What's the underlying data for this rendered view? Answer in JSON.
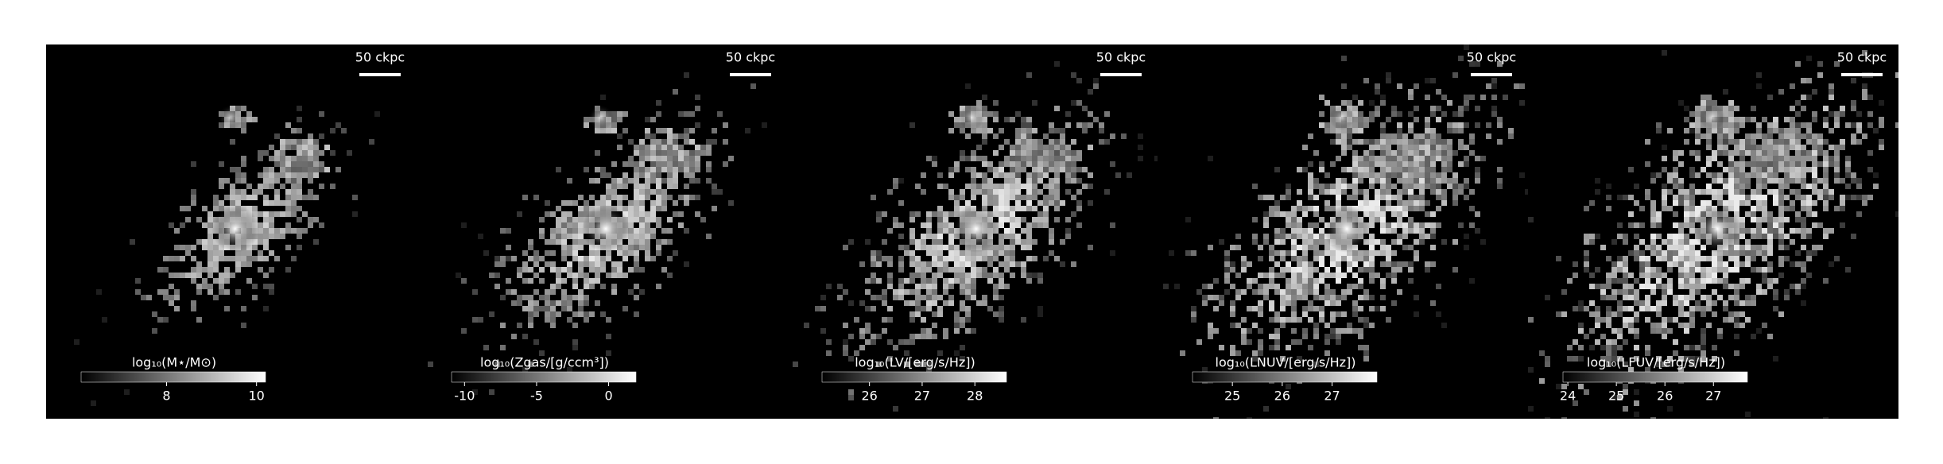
{
  "panels": [
    {
      "scale_label": "50 ckpc",
      "colorbar": {
        "label": "log₁₀(M⋆/M⊙)",
        "clim": [
          6.1,
          10.2
        ],
        "ticks": [
          8,
          10
        ]
      }
    },
    {
      "scale_label": "50 ckpc",
      "colorbar": {
        "label": "log₁₀(Zgas/[g/ccm³])",
        "clim": [
          -10.9,
          1.9
        ],
        "ticks": [
          -10,
          -5,
          0
        ]
      }
    },
    {
      "scale_label": "50 ckpc",
      "colorbar": {
        "label": "log₁₀(LV/[erg/s/Hz])",
        "clim": [
          25.1,
          28.6
        ],
        "ticks": [
          26,
          27,
          28
        ]
      }
    },
    {
      "scale_label": "50 ckpc",
      "colorbar": {
        "label": "log₁₀(LNUV/[erg/s/Hz])",
        "clim": [
          24.2,
          27.9
        ],
        "ticks": [
          25,
          26,
          27
        ]
      }
    },
    {
      "scale_label": "50 ckpc",
      "colorbar": {
        "label": "log₁₀(LFUV/[erg/s/Hz])",
        "clim": [
          23.9,
          27.7
        ],
        "ticks": [
          24,
          25,
          26,
          27
        ]
      }
    }
  ]
}
